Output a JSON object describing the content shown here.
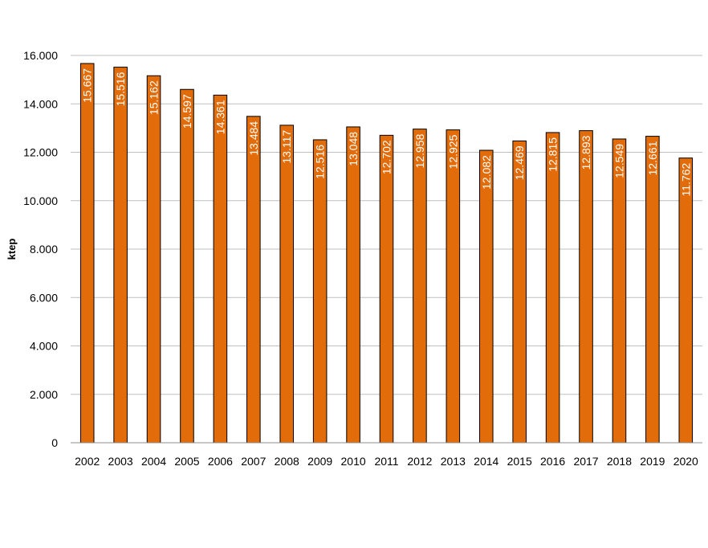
{
  "chart_data": {
    "type": "bar",
    "title": "",
    "xlabel": "",
    "ylabel": "ktep",
    "ylim": [
      0,
      16000
    ],
    "yticks": [
      0,
      2000,
      4000,
      6000,
      8000,
      10000,
      12000,
      14000,
      16000
    ],
    "ytick_labels": [
      "0",
      "2.000",
      "4.000",
      "6.000",
      "8.000",
      "10.000",
      "12.000",
      "14.000",
      "16.000"
    ],
    "grid": true,
    "legend": "none",
    "bar_color": "#E36C0A",
    "categories": [
      "2002",
      "2003",
      "2004",
      "2005",
      "2006",
      "2007",
      "2008",
      "2009",
      "2010",
      "2011",
      "2012",
      "2013",
      "2014",
      "2015",
      "2016",
      "2017",
      "2018",
      "2019",
      "2020"
    ],
    "values": [
      15667,
      15516,
      15162,
      14597,
      14361,
      13484,
      13117,
      12516,
      13048,
      12702,
      12958,
      12925,
      12082,
      12469,
      12815,
      12893,
      12549,
      12661,
      11762
    ],
    "value_labels": [
      "15.667",
      "15.516",
      "15.162",
      "14.597",
      "14.361",
      "13.484",
      "13.117",
      "12.516",
      "13.048",
      "12.702",
      "12.958",
      "12.925",
      "12.082",
      "12.469",
      "12.815",
      "12.893",
      "12.549",
      "12.661",
      "11.762"
    ]
  }
}
